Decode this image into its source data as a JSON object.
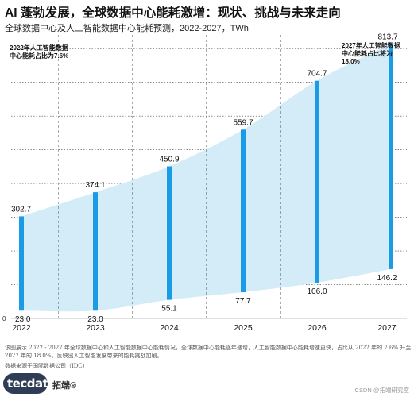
{
  "page": {
    "title": "AI 蓬勃发展，全球数据中心能耗激增：现状、挑战与未来走向",
    "subtitle": "全球数据中心及人工智能数据中心能耗预测，2022-2027，TWh",
    "note_left": "2022年人工智能数据中心能耗占比为7.6%",
    "note_right": "2027年人工智能数据中心能耗占比将为18.0%",
    "footnote": "该图展示 2022 - 2027 年全球数据中心和人工智能数据中心能耗情况，全球数据中心能耗逐年递增，人工智能数据中心能耗增速更快，占比从 2022 年的 7.6% 升至 2027 年的 18.0%，反映出人工智能发展带来的能耗挑战加剧。",
    "source": "数据来源于国际数据公司（IDC）",
    "logo_text": "tecdat",
    "logo_cn": "拓端®",
    "watermark": "CSDN @拓端研究室"
  },
  "chart_data": {
    "type": "bar",
    "title": "全球数据中心及人工智能数据中心能耗预测，2022-2027，TWh",
    "categories": [
      "2022",
      "2023",
      "2024",
      "2025",
      "2026",
      "2027"
    ],
    "series": [
      {
        "values": [
          302.7,
          374.1,
          450.9,
          559.7,
          704.7,
          813.7
        ]
      },
      {
        "values": [
          23.0,
          23.0,
          55.1,
          77.7,
          106.0,
          146.2
        ]
      }
    ],
    "ylim": [
      0,
      850
    ],
    "y_ticks": [
      0
    ],
    "grid": true,
    "colors": {
      "bar": "#1a9be6",
      "band": "#d3ecf8",
      "grid": "#444444"
    }
  }
}
